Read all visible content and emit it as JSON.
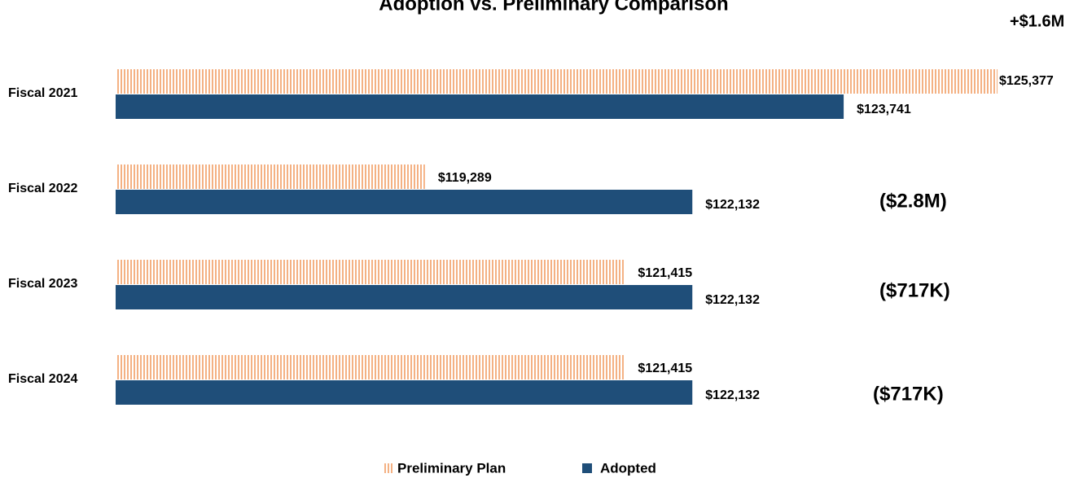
{
  "chart_data": {
    "type": "hbar",
    "title": "Adoption vs. Preliminary Comparison",
    "categories": [
      "Fiscal 2021",
      "Fiscal 2022",
      "Fiscal 2023",
      "Fiscal 2024"
    ],
    "series": [
      {
        "name": "Preliminary Plan",
        "color": "#f4b183",
        "pattern": "vertical-stripes",
        "values": [
          125377,
          119289,
          121415,
          121415
        ],
        "value_labels": [
          "$125,377",
          "$119,289",
          "$121,415",
          "$121,415"
        ]
      },
      {
        "name": "Adopted",
        "color": "#1f4e79",
        "values": [
          123741,
          122132,
          122132,
          122132
        ],
        "value_labels": [
          "$123,741",
          "$122,132",
          "$122,132",
          "$122,132"
        ]
      }
    ],
    "annotations": [
      "+$1.6M",
      "($2.8M)",
      "($717K)",
      "($717K)"
    ],
    "xlim": [
      116000,
      126000
    ],
    "legend": "bottom"
  }
}
